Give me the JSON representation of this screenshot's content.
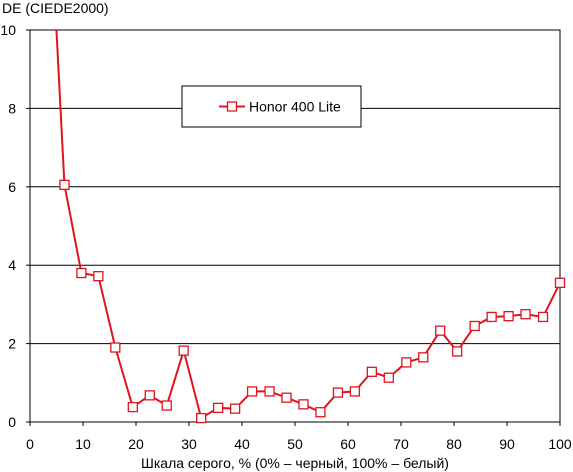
{
  "chart_data": {
    "type": "line",
    "title": "",
    "ylabel": "DE (CIEDE2000)",
    "xlabel": "Шкала серого, % (0% – черный, 100% – белый)",
    "xlim": [
      0,
      100
    ],
    "ylim": [
      0,
      10
    ],
    "x_ticks": [
      "0",
      "10",
      "20",
      "30",
      "40",
      "50",
      "60",
      "70",
      "80",
      "90",
      "100"
    ],
    "y_ticks": [
      "0",
      "2",
      "4",
      "6",
      "8",
      "10"
    ],
    "grid": "horizontal",
    "legend_position": "top-center",
    "series": [
      {
        "name": "Honor 400 Lite",
        "color": "#e0141e",
        "marker": "square",
        "points": [
          {
            "x": 4.8,
            "y": 10.5,
            "marker": false
          },
          {
            "x": 6.5,
            "y": 6.05
          },
          {
            "x": 9.7,
            "y": 3.8
          },
          {
            "x": 12.9,
            "y": 3.72
          },
          {
            "x": 16.1,
            "y": 1.9
          },
          {
            "x": 19.4,
            "y": 0.38
          },
          {
            "x": 22.6,
            "y": 0.68
          },
          {
            "x": 25.8,
            "y": 0.42
          },
          {
            "x": 29.0,
            "y": 1.82
          },
          {
            "x": 32.3,
            "y": 0.1
          },
          {
            "x": 35.5,
            "y": 0.36
          },
          {
            "x": 38.7,
            "y": 0.34
          },
          {
            "x": 41.9,
            "y": 0.78
          },
          {
            "x": 45.2,
            "y": 0.78
          },
          {
            "x": 48.4,
            "y": 0.62
          },
          {
            "x": 51.6,
            "y": 0.45
          },
          {
            "x": 54.8,
            "y": 0.25
          },
          {
            "x": 58.1,
            "y": 0.75
          },
          {
            "x": 61.3,
            "y": 0.78
          },
          {
            "x": 64.5,
            "y": 1.28
          },
          {
            "x": 67.7,
            "y": 1.13
          },
          {
            "x": 71.0,
            "y": 1.52
          },
          {
            "x": 74.2,
            "y": 1.65
          },
          {
            "x": 77.4,
            "y": 2.33
          },
          {
            "x": 80.6,
            "y": 1.8
          },
          {
            "x": 83.9,
            "y": 2.45
          },
          {
            "x": 87.1,
            "y": 2.68
          },
          {
            "x": 90.3,
            "y": 2.7
          },
          {
            "x": 93.5,
            "y": 2.75
          },
          {
            "x": 96.8,
            "y": 2.68
          },
          {
            "x": 100.0,
            "y": 3.55
          }
        ]
      }
    ]
  }
}
